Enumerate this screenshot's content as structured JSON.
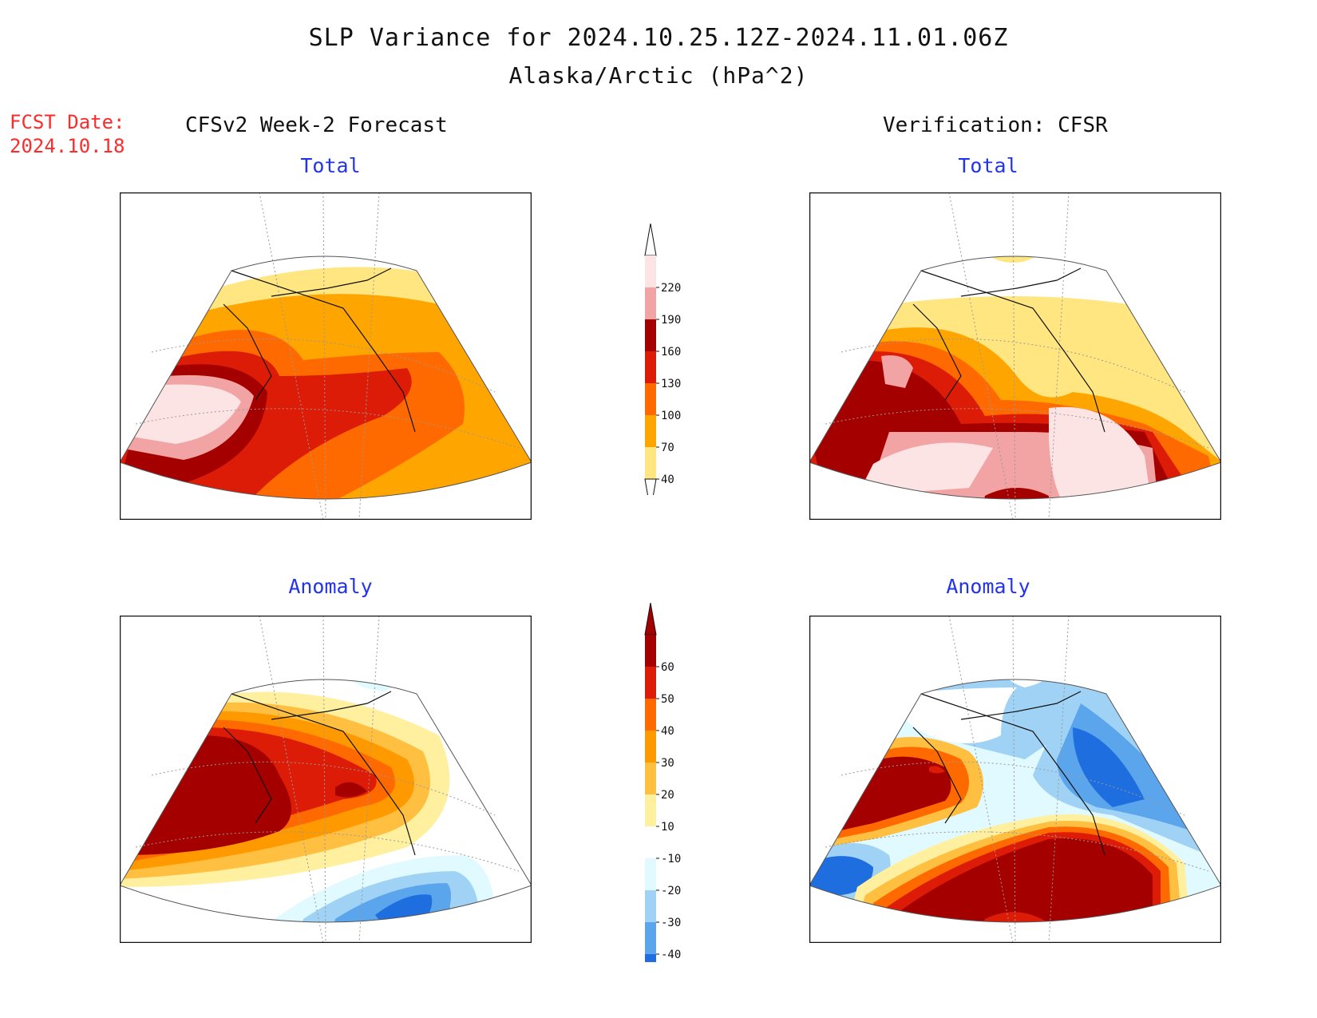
{
  "header": {
    "title": "SLP Variance for 2024.10.25.12Z-2024.11.01.06Z",
    "subtitle": "Alaska/Arctic (hPa^2)",
    "fcst_label_line1": "FCST Date:",
    "fcst_label_line2": "2024.10.18",
    "left_column": "CFSv2 Week-2 Forecast",
    "right_column": "Verification: CFSR"
  },
  "panels": {
    "forecast_total": {
      "title": "Total"
    },
    "verification_total": {
      "title": "Total"
    },
    "forecast_anomaly": {
      "title": "Anomaly"
    },
    "verification_anomaly": {
      "title": "Anomaly"
    }
  },
  "colorbar_total": {
    "labels": [
      "220",
      "190",
      "160",
      "130",
      "100",
      "70",
      "40"
    ],
    "colors": [
      "#fde4e4",
      "#f2a3a3",
      "#a50000",
      "#dd1c07",
      "#ff6a00",
      "#ffa500",
      "#ffe680"
    ]
  },
  "colorbar_anomaly": {
    "labels": [
      "60",
      "50",
      "40",
      "30",
      "20",
      "10",
      "-10",
      "-20",
      "-30",
      "-40"
    ],
    "colors": [
      "#a50000",
      "#dd1c07",
      "#ff6a00",
      "#ff9900",
      "#ffbf40",
      "#fff0a0",
      "#ffffff",
      "#e0faff",
      "#a0d2f5",
      "#5aa5ec",
      "#1e6ee0"
    ]
  },
  "colors": {
    "panel_title": "#2233ee",
    "fcst_date": "#ff2a2a"
  }
}
